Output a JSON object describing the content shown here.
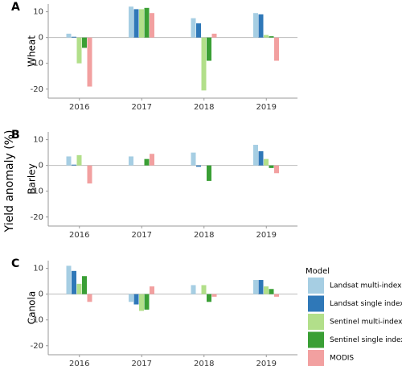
{
  "ylabel": "Yield anomaly (%)",
  "legend": {
    "title": "Model",
    "entries": [
      {
        "name": "Landsat multi-index",
        "color": "#a6cee3"
      },
      {
        "name": "Landsat single index",
        "color": "#2f78b8"
      },
      {
        "name": "Sentinel multi-index",
        "color": "#b2df8a"
      },
      {
        "name": "Sentinel single index",
        "color": "#3a9f35"
      },
      {
        "name": "MODIS",
        "color": "#f2a0a0"
      }
    ]
  },
  "chart_data": [
    {
      "type": "bar",
      "panel_label": "A",
      "ylabel": "Wheat",
      "categories": [
        "2016",
        "2017",
        "2018",
        "2019"
      ],
      "series": [
        {
          "values": [
            1.5,
            12,
            7.5,
            9.5
          ]
        },
        {
          "values": [
            0.3,
            11,
            5.5,
            9
          ]
        },
        {
          "values": [
            -10,
            11,
            -20.5,
            1
          ]
        },
        {
          "values": [
            -4,
            11.5,
            -9,
            0.5
          ]
        },
        {
          "values": [
            -19,
            9.5,
            1.5,
            -9
          ]
        }
      ],
      "ylim": [
        -23.5,
        13
      ],
      "yticks": [
        -20,
        -10,
        0,
        10
      ]
    },
    {
      "type": "bar",
      "panel_label": "B",
      "ylabel": "Barley",
      "categories": [
        "2016",
        "2017",
        "2018",
        "2019"
      ],
      "series": [
        {
          "values": [
            3.5,
            3.5,
            5,
            8
          ]
        },
        {
          "values": [
            0.3,
            0,
            -0.5,
            5.5
          ]
        },
        {
          "values": [
            4,
            0,
            0,
            2.5
          ]
        },
        {
          "values": [
            0,
            2.5,
            -6,
            -1
          ]
        },
        {
          "values": [
            -7,
            4.5,
            0,
            -3
          ]
        }
      ],
      "ylim": [
        -23.5,
        13
      ],
      "yticks": [
        -20,
        -10,
        0,
        10
      ]
    },
    {
      "type": "bar",
      "panel_label": "C",
      "ylabel": "Canola",
      "categories": [
        "2016",
        "2017",
        "2018",
        "2019"
      ],
      "series": [
        {
          "values": [
            11,
            -3,
            3.5,
            5.5
          ]
        },
        {
          "values": [
            9,
            -4,
            0,
            5.5
          ]
        },
        {
          "values": [
            4,
            -6.5,
            3.5,
            3
          ]
        },
        {
          "values": [
            7,
            -6,
            -3,
            2
          ]
        },
        {
          "values": [
            -3,
            3,
            -1,
            -1
          ]
        }
      ],
      "ylim": [
        -23.5,
        13
      ],
      "yticks": [
        -20,
        -10,
        0,
        10
      ]
    }
  ]
}
